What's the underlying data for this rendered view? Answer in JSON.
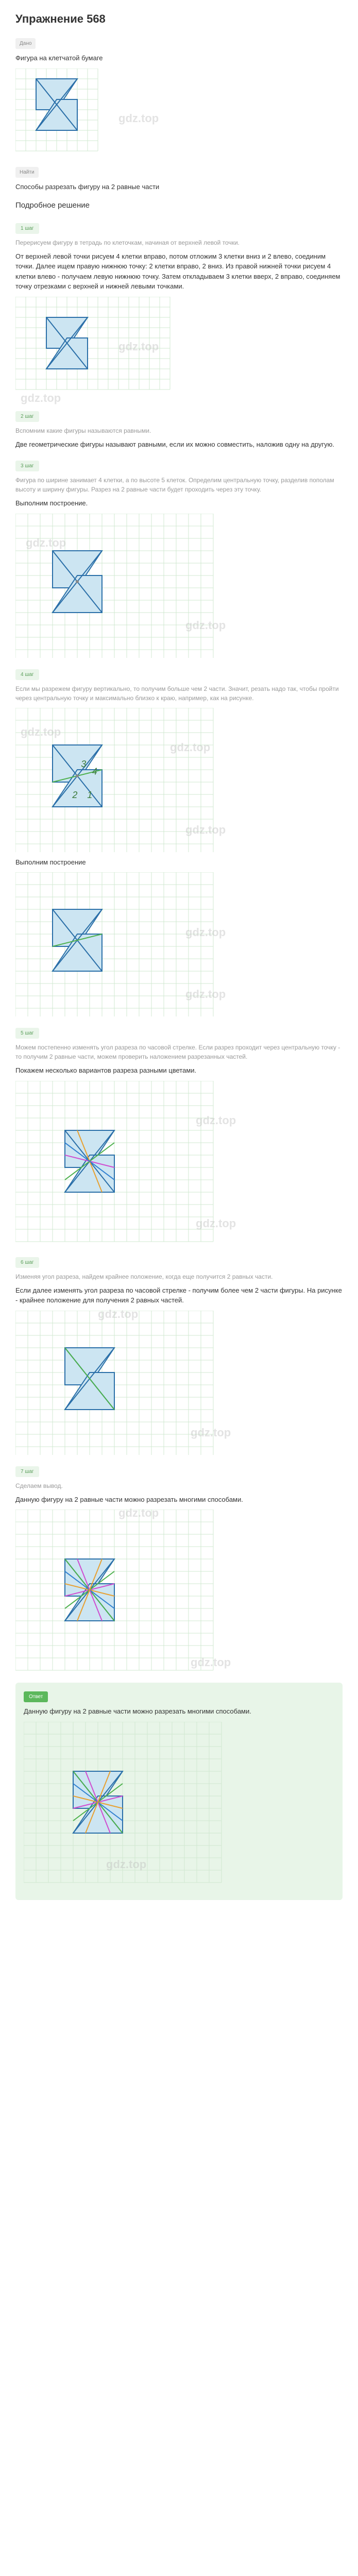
{
  "title": "Упражнение 568",
  "badge_given": "Дано",
  "given_text": "Фигура на клетчатой бумаге",
  "badge_find": "Найти",
  "find_text": "Способы разрезать фигуру на 2 равные части",
  "solution_title": "Подробное решение",
  "step1_badge": "1 шаг",
  "step1_gray": "Перерисуем фигуру в тетрадь по клеточкам, начиная от верхней левой точки.",
  "step1_text": "От верхней левой точки рисуем 4 клетки вправо, потом отложим 3 клетки вниз и 2 влево, соединим точки. Далее ищем правую нижнюю точку: 2 клетки вправо, 2 вниз. Из правой нижней точки рисуем 4 клетки влево - получаем левую нижнюю точку. Затем откладываем 3 клетки вверх, 2 вправо, соединяем точку отрезками с верхней и нижней левыми точками.",
  "step2_badge": "2 шаг",
  "step2_gray": "Вспомним какие фигуры называются равными.",
  "step2_text": "Две геометрические фигуры называют равными, если их можно совместить, наложив одну на другую.",
  "step3_badge": "3 шаг",
  "step3_gray": "Фигура по ширине занимает 4 клетки, а по высоте 5 клеток. Определим центральную точку, разделив пополам высоту и ширину фигуры. Разрез на 2 равные части будет проходить через эту точку.",
  "step3_text": "Выполним построение.",
  "step4_badge": "4 шаг",
  "step4_gray": "Если мы разрежем фигуру вертикально, то получим больше чем 2 части. Значит, резать надо так, чтобы пройти через центральную точку и максимально близко к краю, например, как на рисунке.",
  "step5_text": "Выполним построение",
  "step5_badge": "5 шаг",
  "step5_gray": "Можем постепенно изменять угол разреза по часовой стрелке. Если разрез проходит через центральную точку - то получим 2 равные части, можем проверить наложением разрезанных частей.",
  "step5_text2": "Покажем несколько вариантов разреза разными цветами.",
  "step6_badge": "6 шаг",
  "step6_gray": "Изменяя угол разреза, найдем крайнее положение, когда еще получится 2 равных части.",
  "step6_text": "Если далее изменять угол разреза по часовой стрелке - получим более чем 2 части фигуры. На рисунке - крайнее положение для получения 2 равных частей.",
  "step7_badge": "7 шаг",
  "step7_gray": "Сделаем вывод.",
  "step7_text": "Данную фигуру на 2 равные части можно разрезать многими способами.",
  "answer_badge": "Ответ",
  "answer_text": "Данную фигуру на 2 равные части можно разрезать многими способами.",
  "watermark": "gdz.top",
  "colors": {
    "grid": "#d0e8d0",
    "figure_fill": "#cce5f2",
    "figure_stroke": "#2a6fa8",
    "center_dot": "#888",
    "cut_green": "#4cb04c",
    "cut_magenta": "#d04cd0",
    "cut_orange": "#e8a030",
    "cut_blue": "#3080d0",
    "num_color": "#3a7a3a",
    "answer_bg": "#e8f5e8"
  },
  "grid_size": 20,
  "figure": {
    "points": [
      [
        1,
        1
      ],
      [
        5,
        1
      ],
      [
        3,
        4
      ],
      [
        5,
        4
      ],
      [
        5,
        6
      ],
      [
        1,
        6
      ],
      [
        3,
        3
      ],
      [
        1,
        3
      ]
    ],
    "width_cells": 8,
    "height_cells": 8
  }
}
